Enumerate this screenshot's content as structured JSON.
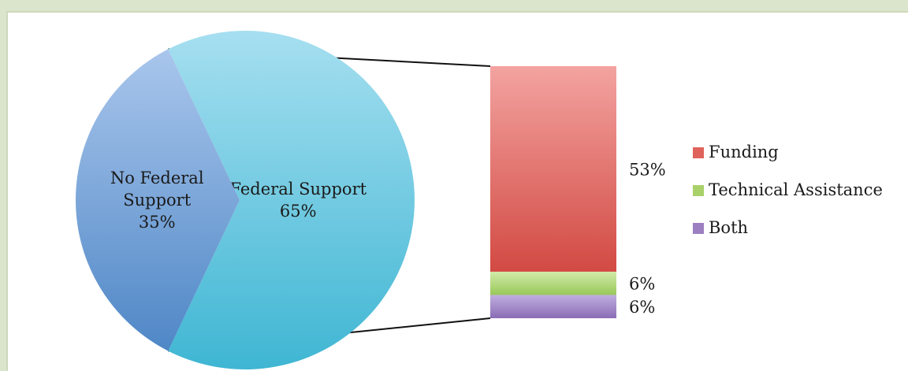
{
  "chart_data": {
    "type": "pie",
    "title": "",
    "pie": {
      "slices": [
        {
          "label_lines": [
            "Federal Support",
            "65%"
          ],
          "value": 65,
          "color": "#62c3dc"
        },
        {
          "label_lines": [
            "No Federal",
            "Support",
            "35%"
          ],
          "value": 35,
          "color": "#7ba6da"
        }
      ]
    },
    "breakdown": {
      "type": "stacked-bar",
      "of": "Federal Support",
      "segments": [
        {
          "name": "Both",
          "value": 6,
          "label": "6%",
          "color": "#9b7fc0"
        },
        {
          "name": "Technical Assistance",
          "value": 6,
          "label": "6%",
          "color": "#a9d16a"
        },
        {
          "name": "Funding",
          "value": 53,
          "label": "53%",
          "color": "#e0625c"
        }
      ]
    },
    "legend": {
      "position": "right",
      "entries": [
        {
          "name": "Funding",
          "color": "#e0625c"
        },
        {
          "name": "Technical Assistance",
          "color": "#a9d16a"
        },
        {
          "name": "Both",
          "color": "#9b7fc0"
        }
      ]
    }
  }
}
